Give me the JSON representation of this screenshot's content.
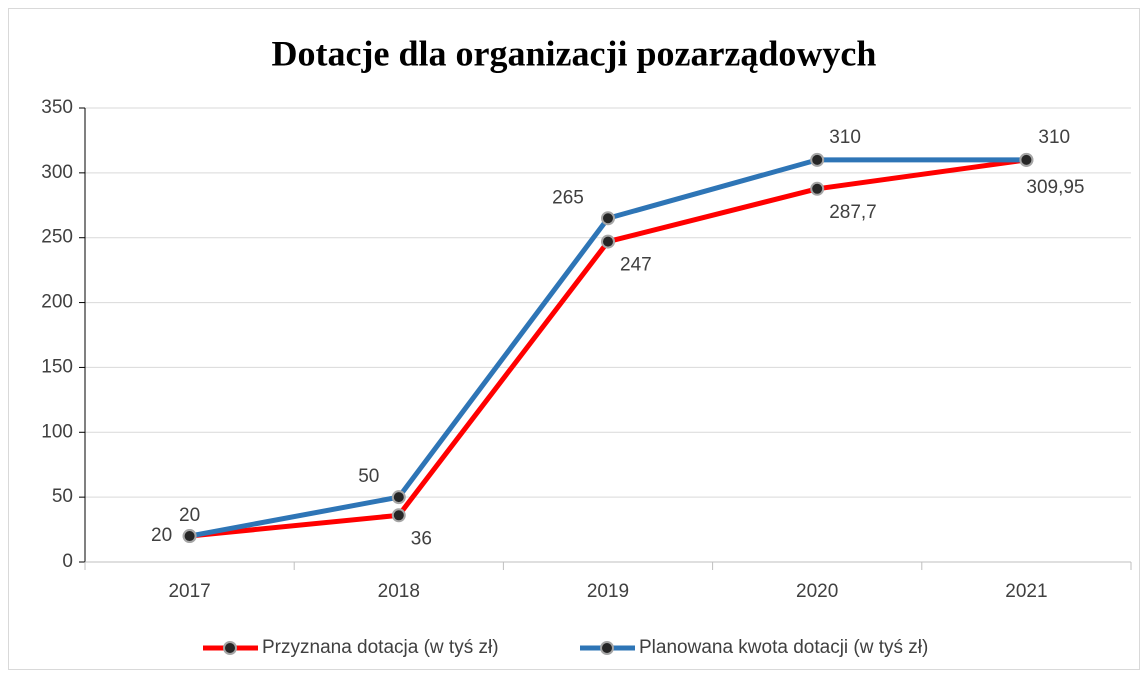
{
  "chart_data": {
    "type": "line",
    "title": "Dotacje dla organizacji pozarządowych",
    "categories": [
      "2017",
      "2018",
      "2019",
      "2020",
      "2021"
    ],
    "series": [
      {
        "name": "Przyznana dotacja (w tyś zł)",
        "color": "#ff0000",
        "values": [
          20,
          36,
          247,
          287.7,
          309.95
        ],
        "value_labels": [
          "20",
          "36",
          "247",
          "287,7",
          "309,95"
        ]
      },
      {
        "name": "Planowana kwota dotacji (w tyś zł)",
        "color": "#2e75b6",
        "values": [
          20,
          50,
          265,
          310,
          310
        ]
      }
    ],
    "ylim": [
      0,
      350
    ],
    "yticks": [
      0,
      50,
      100,
      150,
      200,
      250,
      300,
      350
    ],
    "grid": true,
    "legend": "bottom"
  }
}
